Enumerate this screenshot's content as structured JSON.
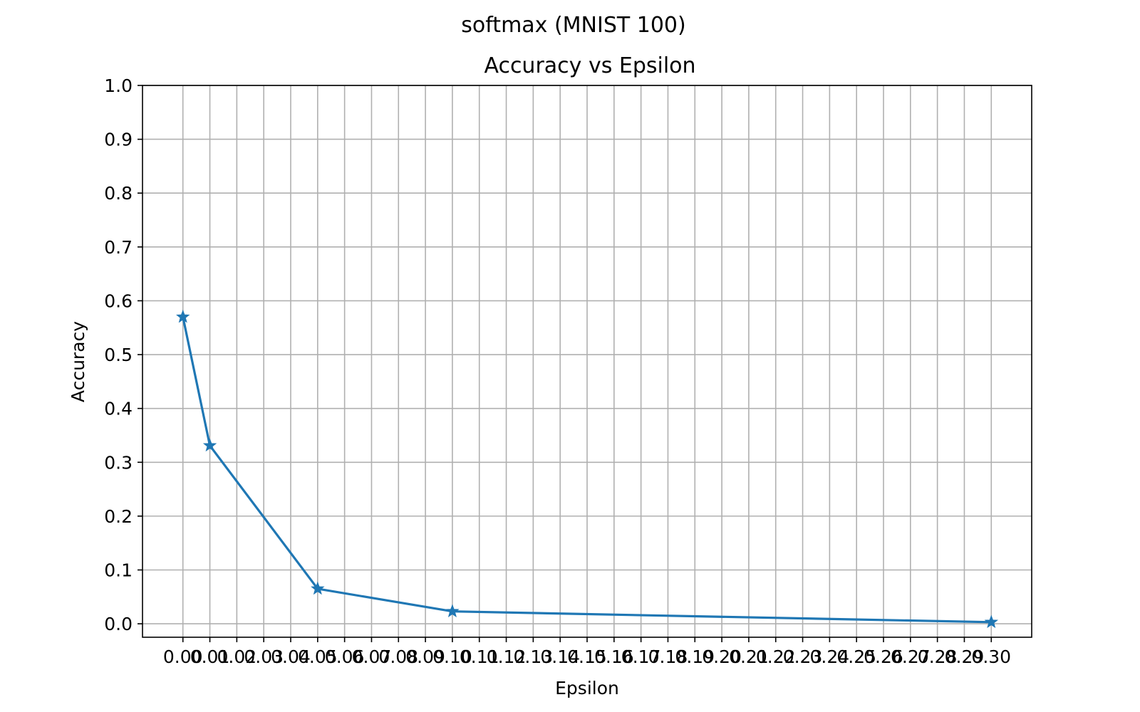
{
  "chart_data": {
    "type": "line",
    "suptitle": "softmax (MNIST 100)",
    "title": "Accuracy vs Epsilon",
    "xlabel": "Epsilon",
    "ylabel": "Accuracy",
    "xticks": [
      "0.00",
      "0.01",
      "0.02",
      "0.03",
      "0.04",
      "0.05",
      "0.06",
      "0.07",
      "0.08",
      "0.09",
      "0.10",
      "0.11",
      "0.12",
      "0.13",
      "0.14",
      "0.15",
      "0.16",
      "0.17",
      "0.18",
      "0.19",
      "0.20",
      "0.21",
      "0.22",
      "0.23",
      "0.24",
      "0.25",
      "0.26",
      "0.27",
      "0.28",
      "0.29",
      "0.30"
    ],
    "xlim": [
      -0.015,
      0.315
    ],
    "yticks": [
      "0.0",
      "0.1",
      "0.2",
      "0.3",
      "0.4",
      "0.5",
      "0.6",
      "0.7",
      "0.8",
      "0.9",
      "1.0"
    ],
    "ylim": [
      -0.025,
      1.0
    ],
    "grid": true,
    "marker": "star",
    "color": "#1f77b4",
    "series": [
      {
        "x": [
          0.0,
          0.01,
          0.05,
          0.1,
          0.3
        ],
        "y": [
          0.57,
          0.331,
          0.065,
          0.023,
          0.003
        ]
      }
    ]
  }
}
